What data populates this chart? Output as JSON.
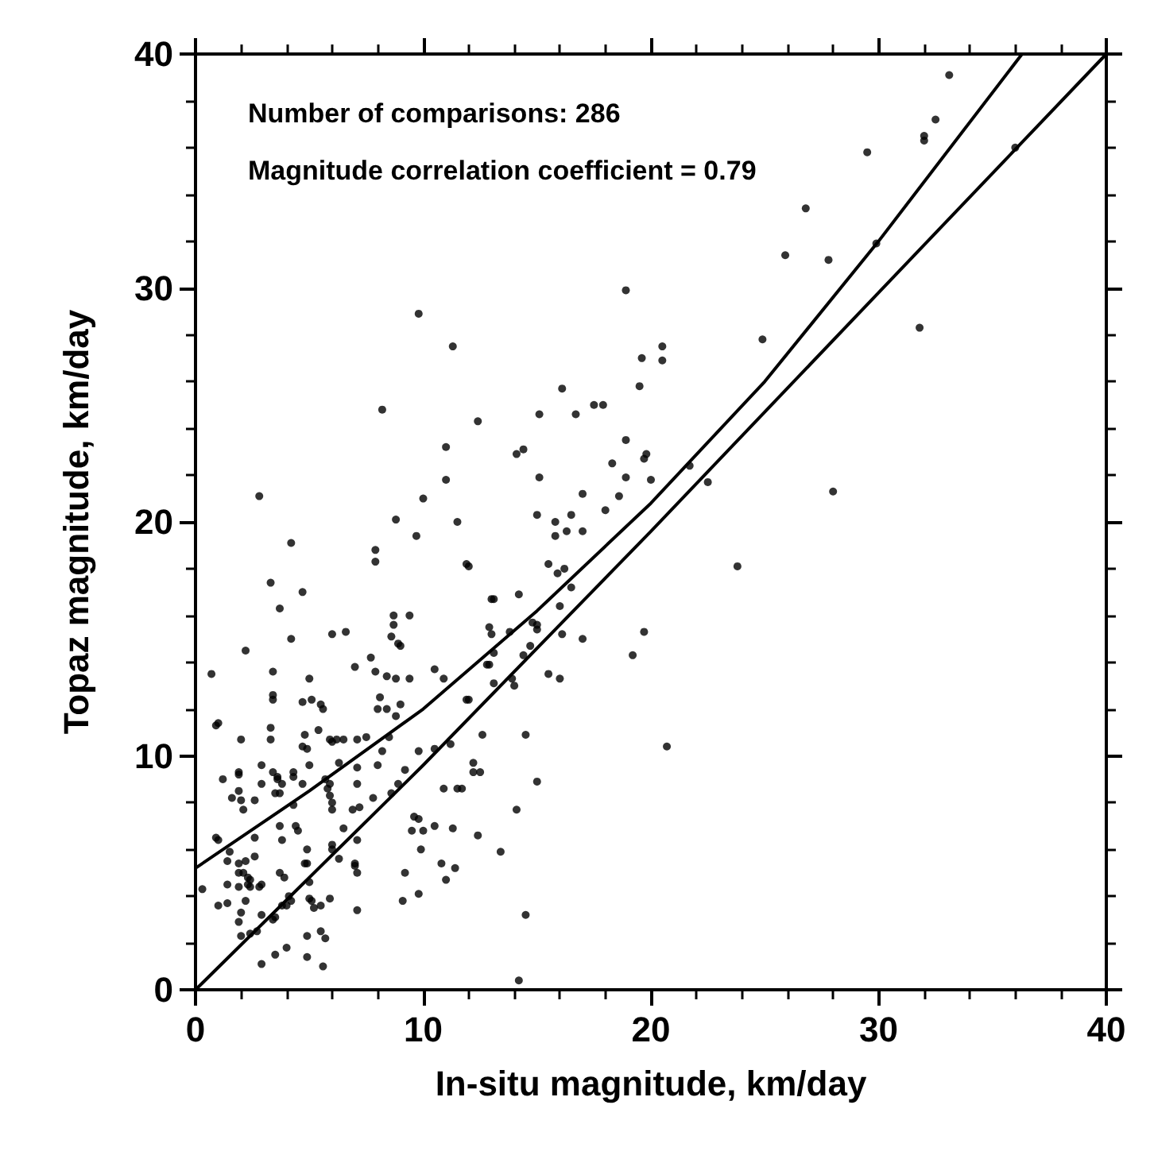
{
  "chart_data": {
    "type": "scatter",
    "xlabel": "In-situ magnitude, km/day",
    "ylabel": "Topaz magnitude, km/day",
    "annotations": [
      "Number of comparisons: 286",
      "Magnitude correlation coefficient = 0.79"
    ],
    "xlim": [
      0,
      40
    ],
    "ylim": [
      0,
      40
    ],
    "xticks": [
      0,
      10,
      20,
      30,
      40
    ],
    "yticks": [
      0,
      10,
      20,
      30,
      40
    ],
    "grid": false,
    "marker": "circle",
    "series": [
      {
        "color": "#000000",
        "x": [
          33.1,
          32.5,
          32.0,
          32.0,
          29.5,
          36.0,
          26.8,
          25.9,
          27.8,
          29.9,
          24.9,
          31.8,
          28.0,
          2.8,
          9.8,
          11.3,
          8.2,
          12.4,
          11.0,
          11.0,
          10.0,
          8.8,
          11.5,
          14.1,
          14.4,
          15.1,
          16.1,
          16.7,
          17.5,
          17.9,
          18.9,
          19.6,
          20.5,
          20.5,
          19.5,
          18.9,
          19.8,
          19.7,
          18.3,
          18.9,
          20.0,
          21.7,
          22.5,
          15.1,
          17.0,
          18.6,
          18.0,
          15.0,
          15.8,
          16.5,
          23.8,
          15.8,
          16.3,
          17.0,
          15.5,
          15.9,
          16.2,
          16.5,
          14.2,
          13.0,
          13.1,
          16.0,
          12.9,
          13.0,
          13.8,
          14.8,
          15.0,
          15.0,
          16.1,
          17.0,
          19.7,
          19.2,
          13.1,
          14.4,
          14.7,
          12.9,
          13.1,
          13.9,
          14.0,
          15.5,
          16.0,
          12.6,
          14.5,
          20.7,
          12.2,
          12.2,
          12.5,
          15.0,
          14.1,
          12.4,
          13.4,
          14.5,
          14.2,
          12.0,
          12.0,
          9.7,
          4.2,
          7.9,
          7.9,
          11.9,
          3.3,
          4.7,
          3.7,
          8.7,
          9.4,
          8.7,
          4.2,
          6.0,
          6.6,
          8.6,
          8.9,
          9.0,
          2.2,
          0.7,
          3.4,
          5.0,
          7.0,
          7.7,
          7.9,
          8.4,
          8.8,
          9.4,
          10.5,
          10.9,
          12.8,
          3.4,
          3.4,
          4.7,
          5.1,
          5.5,
          5.6,
          8.1,
          8.4,
          8.0,
          9.0,
          8.8,
          0.9,
          1.0,
          2.0,
          3.3,
          3.3,
          4.8,
          4.9,
          5.4,
          4.7,
          5.9,
          6.0,
          6.2,
          6.5,
          7.1,
          7.5,
          8.2,
          8.5,
          1.2,
          1.9,
          1.9,
          1.6,
          1.9,
          2.0,
          2.1,
          2.6,
          2.9,
          2.9,
          3.4,
          3.6,
          3.6,
          3.8,
          3.5,
          3.7,
          4.3,
          4.3,
          4.7,
          5.0,
          5.7,
          5.8,
          5.9,
          5.9,
          6.0,
          6.0,
          6.3,
          7.1,
          7.1,
          6.9,
          8.0,
          7.8,
          7.2,
          8.6,
          8.9,
          9.2,
          9.8,
          10.5,
          11.2,
          10.9,
          11.5,
          11.7,
          11.9,
          0.3,
          0.9,
          1.0,
          1.4,
          1.5,
          1.0,
          1.4,
          1.4,
          1.9,
          1.9,
          1.9,
          2.2,
          2.1,
          2.0,
          1.9,
          2.0,
          2.2,
          2.3,
          2.4,
          2.4,
          2.3,
          2.6,
          2.6,
          2.4,
          2.7,
          2.8,
          2.9,
          2.9,
          2.9,
          3.5,
          3.7,
          3.8,
          3.7,
          3.9,
          3.5,
          3.4,
          3.8,
          4.0,
          4.1,
          4.2,
          4.0,
          4.3,
          4.4,
          4.5,
          4.9,
          4.9,
          4.8,
          5.0,
          5.0,
          5.1,
          5.2,
          4.9,
          4.9,
          5.5,
          5.9,
          5.5,
          5.7,
          5.6,
          6.0,
          6.0,
          6.3,
          6.5,
          7.0,
          7.1,
          7.0,
          7.1,
          7.1,
          9.2,
          9.1,
          9.6,
          9.8,
          10.0,
          9.5,
          9.8,
          9.9,
          10.5,
          10.8,
          11.0,
          11.3,
          11.4
        ],
        "values": [
          39.1,
          37.2,
          36.5,
          36.3,
          35.8,
          36.0,
          33.4,
          31.4,
          31.2,
          31.9,
          27.8,
          28.3,
          21.3,
          21.1,
          28.9,
          27.5,
          24.8,
          24.3,
          23.2,
          21.8,
          21.0,
          20.1,
          20.0,
          22.9,
          23.1,
          24.6,
          25.7,
          24.6,
          25.0,
          25.0,
          29.9,
          27.0,
          27.5,
          26.9,
          25.8,
          23.5,
          22.9,
          22.7,
          22.5,
          21.9,
          21.8,
          22.4,
          21.7,
          21.9,
          21.2,
          21.1,
          20.5,
          20.3,
          20.0,
          20.3,
          18.1,
          19.4,
          19.6,
          19.6,
          18.2,
          17.8,
          18.0,
          17.2,
          16.9,
          16.7,
          16.7,
          16.4,
          15.5,
          15.2,
          15.3,
          15.7,
          15.6,
          15.4,
          15.2,
          15.0,
          15.3,
          14.3,
          14.4,
          14.3,
          14.7,
          13.9,
          13.1,
          13.3,
          13.0,
          13.5,
          13.3,
          10.9,
          10.9,
          10.4,
          9.7,
          9.3,
          9.3,
          8.9,
          7.7,
          6.6,
          5.9,
          3.2,
          0.4,
          12.4,
          18.1,
          19.4,
          19.1,
          18.8,
          18.3,
          18.2,
          17.4,
          17.0,
          16.3,
          16.0,
          16.0,
          15.6,
          15.0,
          15.2,
          15.3,
          15.1,
          14.8,
          14.7,
          14.5,
          13.5,
          13.6,
          13.3,
          13.8,
          14.2,
          13.6,
          13.4,
          13.3,
          13.3,
          13.7,
          13.3,
          13.9,
          12.6,
          12.4,
          12.3,
          12.4,
          12.2,
          12.0,
          12.5,
          12.0,
          12.0,
          12.2,
          11.7,
          11.3,
          11.4,
          10.7,
          11.2,
          10.7,
          10.9,
          10.3,
          11.1,
          10.4,
          10.7,
          10.6,
          10.7,
          10.7,
          10.7,
          10.8,
          10.2,
          10.8,
          9.0,
          9.3,
          9.2,
          8.2,
          8.5,
          8.1,
          7.7,
          8.1,
          9.6,
          8.8,
          9.3,
          9.1,
          9.0,
          8.8,
          8.4,
          8.4,
          9.3,
          9.1,
          8.8,
          9.6,
          9.0,
          8.6,
          8.8,
          8.3,
          8.0,
          7.7,
          9.7,
          9.5,
          8.8,
          7.7,
          9.6,
          8.2,
          7.8,
          8.4,
          8.8,
          9.4,
          10.2,
          10.3,
          10.5,
          8.6,
          8.6,
          8.6,
          12.4,
          4.3,
          6.5,
          6.4,
          5.5,
          5.9,
          3.6,
          3.7,
          4.5,
          5.4,
          5.0,
          4.4,
          5.5,
          5.0,
          3.3,
          2.9,
          2.3,
          3.8,
          4.8,
          4.7,
          4.4,
          4.5,
          6.5,
          5.7,
          2.4,
          2.5,
          4.4,
          4.5,
          3.2,
          1.1,
          1.5,
          7.0,
          6.4,
          5.0,
          4.8,
          3.1,
          3.0,
          3.6,
          1.8,
          4.0,
          3.8,
          3.6,
          7.9,
          7.0,
          6.8,
          6.0,
          5.4,
          5.4,
          4.6,
          3.9,
          3.8,
          3.5,
          1.4,
          2.3,
          3.6,
          3.9,
          2.5,
          2.2,
          1.0,
          6.2,
          6.0,
          5.6,
          6.9,
          5.4,
          5.0,
          5.3,
          3.4,
          6.4,
          5.0,
          3.8,
          7.4,
          7.3,
          6.8,
          6.8,
          4.1,
          6.0,
          7.0,
          5.4,
          4.7,
          6.9,
          5.2
        ]
      },
      {
        "type": "line",
        "color": "#000000",
        "marker": "none",
        "line_style": "solid",
        "x": [
          0,
          5,
          10,
          15,
          20,
          25,
          30,
          36.3
        ],
        "values": [
          5.2,
          8.5,
          12.0,
          16.2,
          20.8,
          26.0,
          32.0,
          40.0
        ]
      },
      {
        "type": "line",
        "color": "#000000",
        "marker": "none",
        "line_style": "solid",
        "x": [
          0,
          10,
          20,
          30,
          40
        ],
        "values": [
          0,
          9.6,
          19.6,
          29.8,
          40.0
        ]
      }
    ]
  }
}
